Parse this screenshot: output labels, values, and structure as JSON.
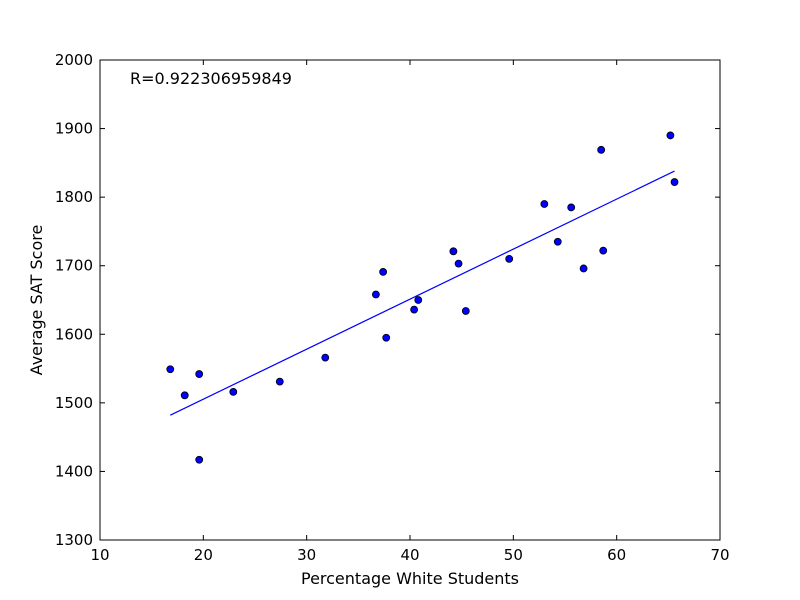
{
  "chart_data": {
    "type": "scatter",
    "title": "",
    "xlabel": "Percentage White Students",
    "ylabel": "Average SAT Score",
    "xlim": [
      10,
      70
    ],
    "ylim": [
      1300,
      2000
    ],
    "xticks": [
      10,
      20,
      30,
      40,
      50,
      60,
      70
    ],
    "yticks": [
      1300,
      1400,
      1500,
      1600,
      1700,
      1800,
      1900,
      2000
    ],
    "xtick_labels": [
      "10",
      "20",
      "30",
      "40",
      "50",
      "60",
      "70"
    ],
    "ytick_labels": [
      "1300",
      "1400",
      "1500",
      "1600",
      "1700",
      "1800",
      "1900",
      "2000"
    ],
    "grid": false,
    "annotation": "R=0.922306959849",
    "point_color": "#0000ff",
    "line_color": "#0000ff",
    "points": [
      {
        "x": 16.8,
        "y": 1549
      },
      {
        "x": 18.2,
        "y": 1511
      },
      {
        "x": 19.6,
        "y": 1542
      },
      {
        "x": 19.6,
        "y": 1417
      },
      {
        "x": 22.9,
        "y": 1516
      },
      {
        "x": 27.4,
        "y": 1531
      },
      {
        "x": 31.8,
        "y": 1566
      },
      {
        "x": 36.7,
        "y": 1658
      },
      {
        "x": 37.4,
        "y": 1691
      },
      {
        "x": 37.7,
        "y": 1595
      },
      {
        "x": 40.4,
        "y": 1636
      },
      {
        "x": 40.8,
        "y": 1650
      },
      {
        "x": 44.2,
        "y": 1721
      },
      {
        "x": 44.7,
        "y": 1703
      },
      {
        "x": 45.4,
        "y": 1634
      },
      {
        "x": 49.6,
        "y": 1710
      },
      {
        "x": 53.0,
        "y": 1790
      },
      {
        "x": 54.3,
        "y": 1735
      },
      {
        "x": 55.6,
        "y": 1785
      },
      {
        "x": 56.8,
        "y": 1696
      },
      {
        "x": 58.5,
        "y": 1869
      },
      {
        "x": 58.7,
        "y": 1722
      },
      {
        "x": 65.2,
        "y": 1890
      },
      {
        "x": 65.6,
        "y": 1822
      }
    ],
    "fit_line": [
      {
        "x": 16.8,
        "y": 1482
      },
      {
        "x": 65.6,
        "y": 1838
      }
    ]
  }
}
